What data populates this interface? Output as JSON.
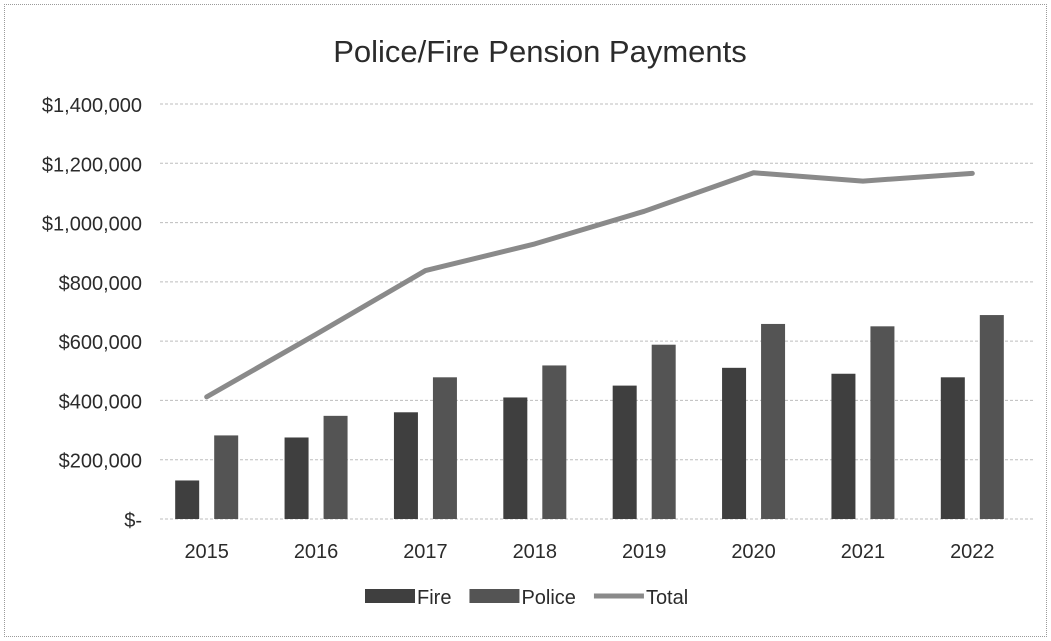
{
  "chart_data": {
    "type": "bar",
    "title": "Police/Fire Pension Payments",
    "xlabel": "",
    "ylabel": "",
    "categories": [
      "2015",
      "2016",
      "2017",
      "2018",
      "2019",
      "2020",
      "2021",
      "2022"
    ],
    "series": [
      {
        "name": "Fire",
        "type": "bar",
        "color": "#3f3f3f",
        "values": [
          130000,
          275000,
          360000,
          410000,
          450000,
          510000,
          490000,
          478000
        ]
      },
      {
        "name": "Police",
        "type": "bar",
        "color": "#545454",
        "values": [
          282000,
          348000,
          478000,
          518000,
          588000,
          658000,
          650000,
          688000
        ]
      },
      {
        "name": "Total",
        "type": "line",
        "color": "#8a8a8a",
        "values": [
          412000,
          623000,
          838000,
          928000,
          1038000,
          1168000,
          1140000,
          1166000
        ]
      }
    ],
    "ylim": [
      0,
      1400000
    ],
    "yticks": [
      0,
      200000,
      400000,
      600000,
      800000,
      1000000,
      1200000,
      1400000
    ],
    "ytick_labels": [
      "$-",
      "$200,000",
      "$400,000",
      "$600,000",
      "$800,000",
      "$1,000,000",
      "$1,200,000",
      "$1,400,000"
    ],
    "grid": true,
    "legend_position": "bottom"
  }
}
